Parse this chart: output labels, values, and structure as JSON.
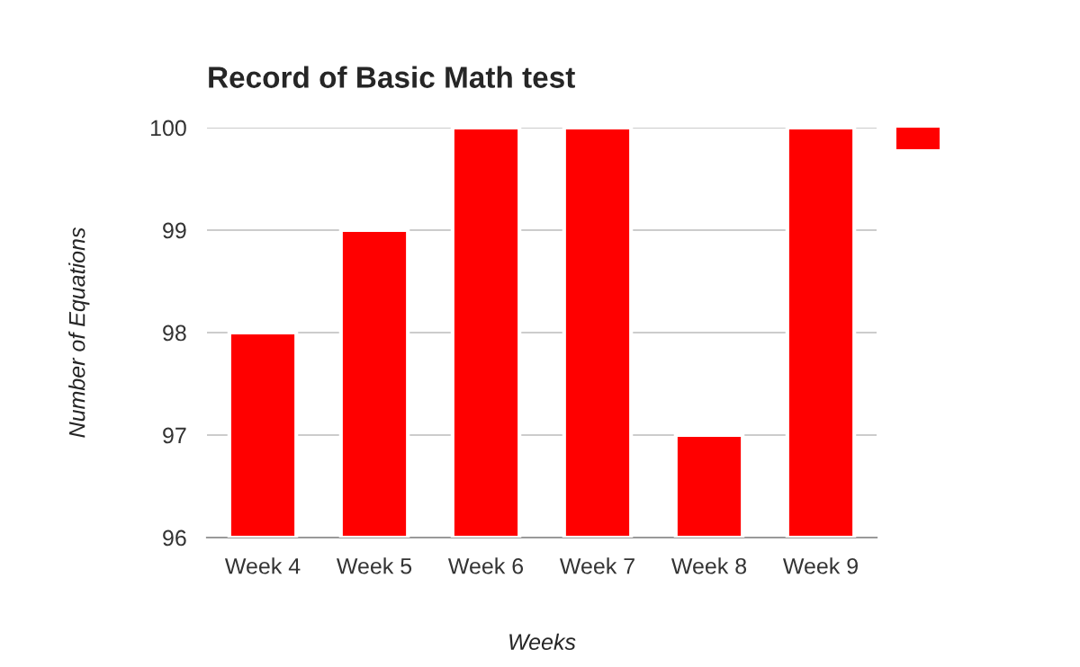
{
  "chart_data": {
    "type": "bar",
    "title": "Record of Basic Math test",
    "xlabel": "Weeks",
    "ylabel": "Number of Equations",
    "categories": [
      "Week 4",
      "Week 5",
      "Week 6",
      "Week 7",
      "Week 8",
      "Week 9"
    ],
    "series": [
      {
        "color": "#ff0000",
        "values": [
          98,
          99,
          100,
          100,
          97,
          100
        ]
      }
    ],
    "ylim": [
      96,
      100
    ],
    "yticks": [
      96,
      97,
      98,
      99,
      100
    ],
    "grid": "y"
  }
}
